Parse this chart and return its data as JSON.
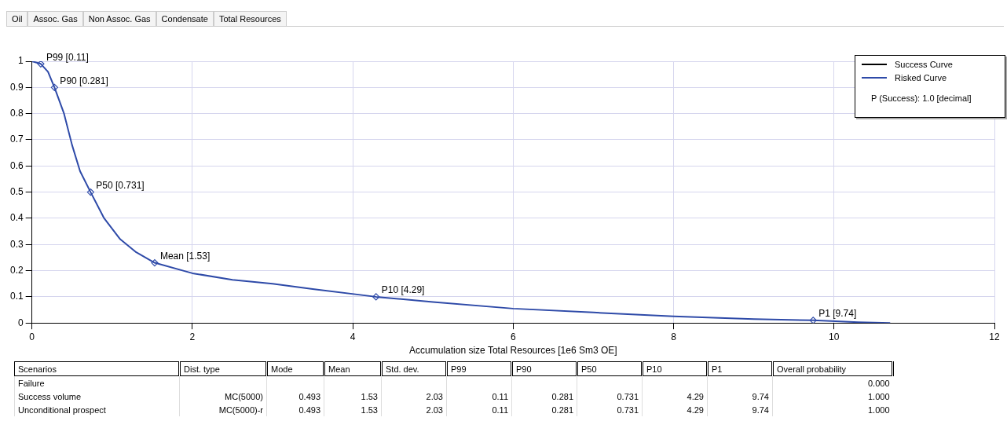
{
  "chart_data": [
    {
      "type": "other",
      "categories": [
        "Oil",
        "Assoc. Gas",
        "Non Assoc. Gas",
        "Condensate",
        "Total Resources"
      ]
    },
    {
      "type": "line",
      "xlabel": "Accumulation size Total Resources [1e6 Sm3 OE]",
      "xlim": [
        0,
        12
      ],
      "xticks": [
        0,
        2,
        4,
        6,
        8,
        10,
        12
      ],
      "ylim": [
        0,
        1
      ],
      "yticks": [
        0,
        0.1,
        0.2,
        0.3,
        0.4,
        0.5,
        0.6,
        0.7,
        0.8,
        0.9,
        1
      ],
      "grid": true,
      "legend": "top right",
      "line_style": "solid",
      "series": [
        {
          "name": "Success Curve",
          "color": "#000000"
        },
        {
          "name": "Risked Curve",
          "color": "#2e4aa8",
          "x": [
            0,
            0.11,
            0.2,
            0.281,
            0.4,
            0.5,
            0.6,
            0.731,
            0.9,
            1.1,
            1.3,
            1.53,
            2,
            2.5,
            3,
            3.5,
            4.29,
            5,
            6,
            7,
            8,
            9,
            9.74,
            10.3,
            10.7
          ],
          "values": [
            1,
            0.99,
            0.96,
            0.9,
            0.8,
            0.68,
            0.58,
            0.5,
            0.4,
            0.32,
            0.27,
            0.23,
            0.19,
            0.165,
            0.15,
            0.13,
            0.1,
            0.08,
            0.055,
            0.04,
            0.025,
            0.015,
            0.01,
            0.003,
            0
          ]
        },
        {
          "type": "scatter",
          "marker": "diamond",
          "color": "#2e4aa8",
          "x": [
            0.11,
            0.281,
            0.731,
            1.53,
            4.29,
            9.74
          ],
          "values": [
            0.99,
            0.9,
            0.5,
            0.23,
            0.1,
            0.01
          ]
        }
      ],
      "annotations": [
        "P (Success): 1.0 [decimal]",
        {
          "text": "P99 [0.11]",
          "x": 0.11,
          "y": 0.99
        },
        {
          "text": "P90 [0.281]",
          "x": 0.281,
          "y": 0.9
        },
        {
          "text": "P50 [0.731]",
          "x": 0.731,
          "y": 0.5
        },
        {
          "text": "Mean [1.53]",
          "x": 1.53,
          "y": 0.23
        },
        {
          "text": "P10 [4.29]",
          "x": 4.29,
          "y": 0.1
        },
        {
          "text": "P1 [9.74]",
          "x": 9.74,
          "y": 0.01
        }
      ]
    },
    {
      "type": "other",
      "categories": [
        "Scenarios",
        "Dist. type",
        "Mode",
        "Mean",
        "Std. dev.",
        "P99",
        "P90",
        "P50",
        "P10",
        "P1",
        "Overall probability"
      ],
      "cell_labels": [
        [
          "Failure",
          null,
          null,
          null,
          null,
          null,
          null,
          null,
          null,
          null,
          "0.000"
        ],
        [
          "Success volume",
          "MC(5000)",
          "0.493",
          "1.53",
          "2.03",
          "0.11",
          "0.281",
          "0.731",
          "4.29",
          "9.74",
          "1.000"
        ],
        [
          "Unconditional prospect",
          "MC(5000)-r",
          "0.493",
          "1.53",
          "2.03",
          "0.11",
          "0.281",
          "0.731",
          "4.29",
          "9.74",
          "1.000"
        ]
      ]
    }
  ]
}
